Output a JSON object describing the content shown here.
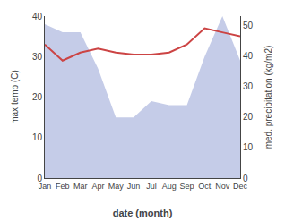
{
  "chart_data": {
    "type": "line",
    "categories": [
      "Jan",
      "Feb",
      "Mar",
      "Apr",
      "May",
      "Jun",
      "Jul",
      "Aug",
      "Sep",
      "Oct",
      "Nov",
      "Dec"
    ],
    "series": [
      {
        "type": "area",
        "color": "#c5cce8",
        "values": [
          38,
          36,
          36,
          27,
          15,
          15,
          19,
          18,
          18,
          30,
          40,
          29
        ]
      },
      {
        "type": "line",
        "color": "#cc4444",
        "values": [
          33,
          29,
          31,
          32,
          31,
          30.5,
          30.5,
          31,
          33,
          37,
          36,
          35
        ]
      }
    ],
    "xlabel": "date (month)",
    "ylabel": "max temp (C)",
    "y2label": "med. precipitation (kg/m2)",
    "ylim": [
      0,
      40
    ],
    "yticks": [
      0,
      10,
      20,
      30,
      40
    ],
    "y2lim": [
      0,
      53
    ],
    "y2ticks": [
      0,
      10,
      20,
      30,
      40,
      50
    ],
    "grid": false
  }
}
